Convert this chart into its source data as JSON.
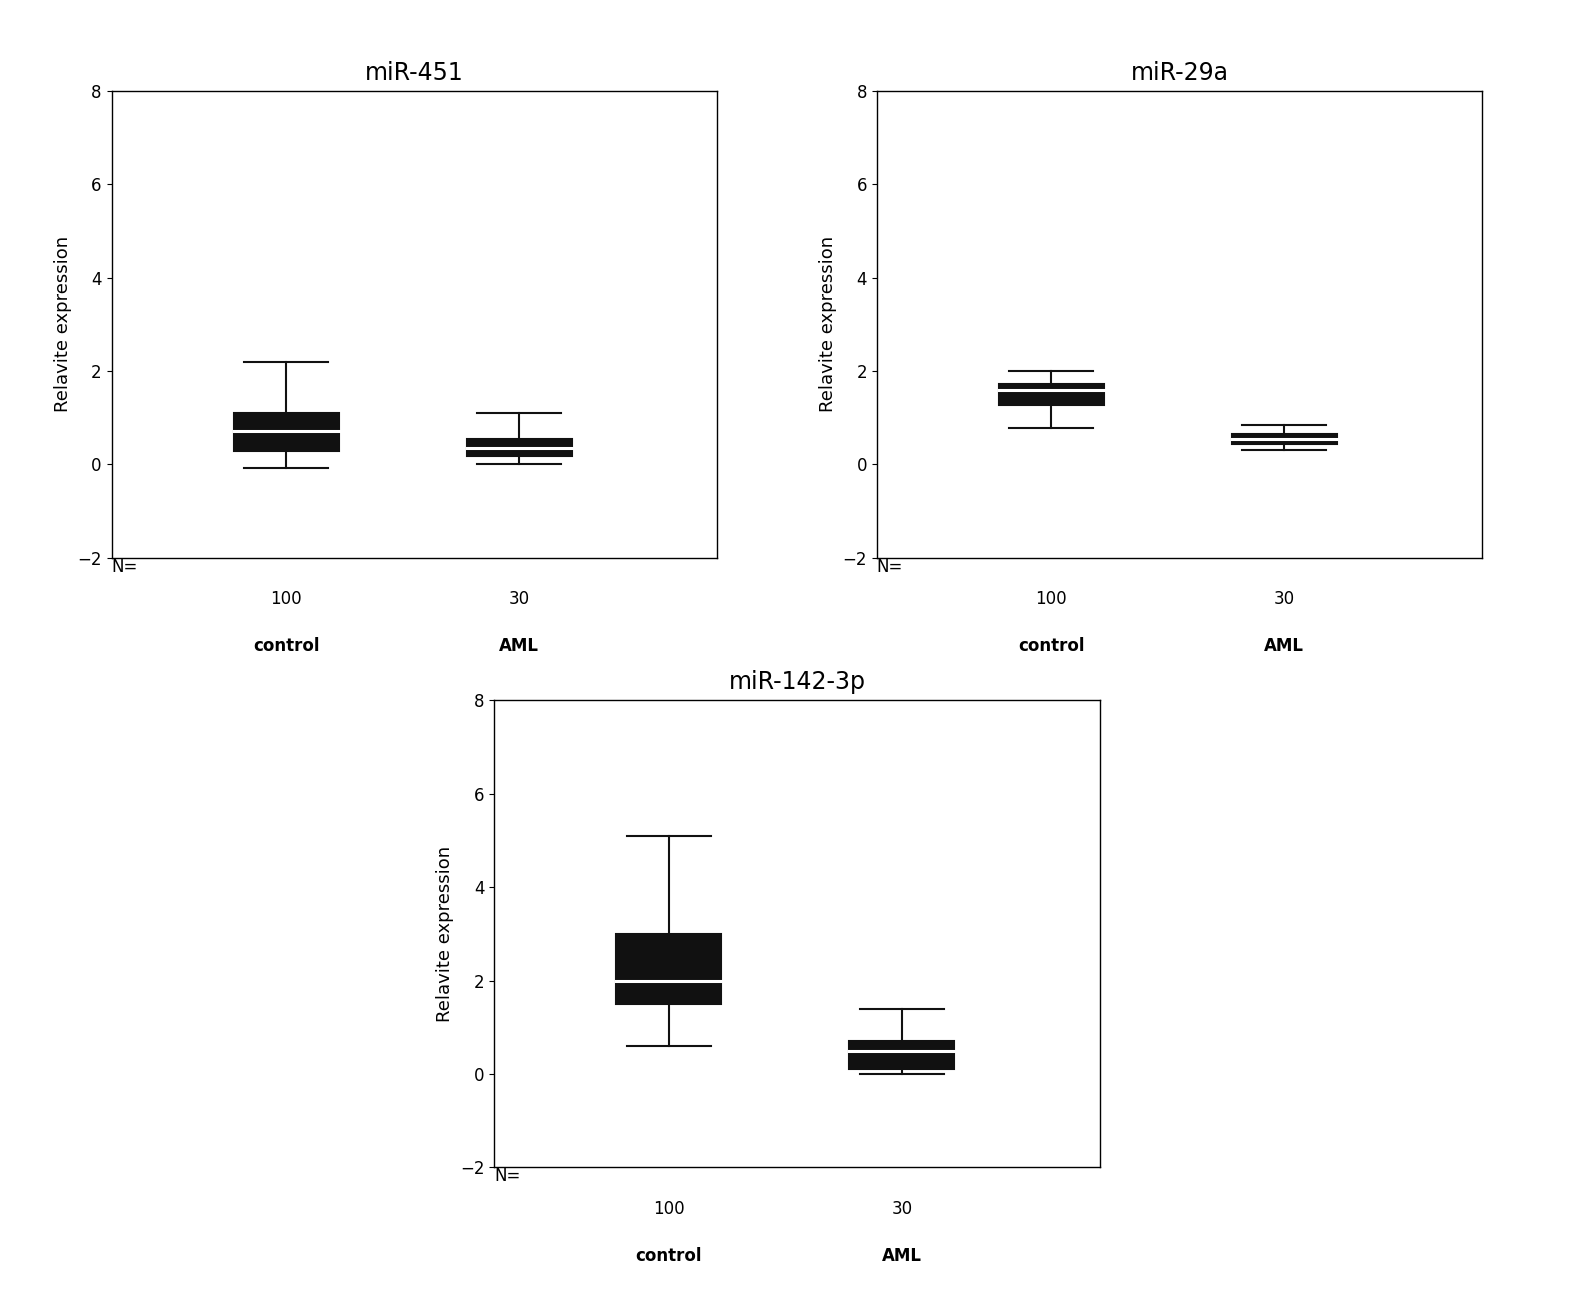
{
  "panels": [
    {
      "title": "miR-451",
      "ylabel": "Relavite expression",
      "ylim": [
        -2,
        8
      ],
      "yticks": [
        -2,
        0,
        2,
        4,
        6,
        8
      ],
      "groups": [
        {
          "label": "control",
          "n": 100,
          "whisker_low": -0.08,
          "q1": 0.28,
          "median": 0.72,
          "q3": 1.1,
          "whisker_high": 2.2
        },
        {
          "label": "AML",
          "n": 30,
          "whisker_low": 0.0,
          "q1": 0.18,
          "median": 0.35,
          "q3": 0.55,
          "whisker_high": 1.1
        }
      ]
    },
    {
      "title": "miR-29a",
      "ylabel": "Relavite expression",
      "ylim": [
        -2,
        8
      ],
      "yticks": [
        -2,
        0,
        2,
        4,
        6,
        8
      ],
      "groups": [
        {
          "label": "control",
          "n": 100,
          "whisker_low": 0.78,
          "q1": 1.28,
          "median": 1.6,
          "q3": 1.72,
          "whisker_high": 2.0
        },
        {
          "label": "AML",
          "n": 30,
          "whisker_low": 0.3,
          "q1": 0.44,
          "median": 0.55,
          "q3": 0.65,
          "whisker_high": 0.85
        }
      ]
    },
    {
      "title": "miR-142-3p",
      "ylabel": "Relavite expression",
      "ylim": [
        -2,
        8
      ],
      "yticks": [
        -2,
        0,
        2,
        4,
        6,
        8
      ],
      "groups": [
        {
          "label": "control",
          "n": 100,
          "whisker_low": 0.6,
          "q1": 1.5,
          "median": 2.0,
          "q3": 3.0,
          "whisker_high": 5.1
        },
        {
          "label": "AML",
          "n": 30,
          "whisker_low": 0.0,
          "q1": 0.1,
          "median": 0.5,
          "q3": 0.7,
          "whisker_high": 1.4
        }
      ]
    }
  ],
  "box_color": "#111111",
  "background_color": "#ffffff",
  "title_fontsize": 17,
  "label_fontsize": 13,
  "tick_fontsize": 12,
  "n_label_fontsize": 12,
  "box_width": 0.45,
  "positions": [
    1.0,
    2.0
  ],
  "xlim": [
    0.25,
    2.85
  ]
}
